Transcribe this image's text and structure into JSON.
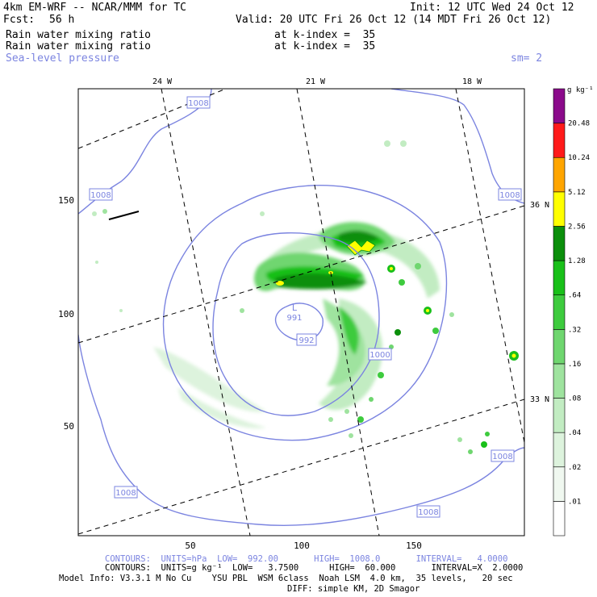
{
  "header": {
    "model": "4km EM-WRF -- NCAR/MMM for TC",
    "init": "Init: 12 UTC Wed 24 Oct 12",
    "fcst_label": "Fcst:",
    "fcst_value": "56 h",
    "valid": "Valid: 20 UTC Fri 26 Oct 12 (14 MDT Fri 26 Oct 12)",
    "fields": [
      {
        "name": "Rain water mixing ratio",
        "level": "at k-index =  35"
      },
      {
        "name": "Rain water mixing ratio",
        "level": "at k-index =  35"
      }
    ],
    "slp_label": "Sea-level pressure",
    "smooth": "sm= 2"
  },
  "axes": {
    "x_ticks": [
      "50",
      "100",
      "150"
    ],
    "y_ticks": [
      "50",
      "100",
      "150"
    ],
    "lon_labels": [
      "24 W",
      "21 W",
      "18 W"
    ],
    "lat_labels": [
      "36 N",
      "33 N"
    ]
  },
  "colorbar": {
    "units": "g kg⁻¹",
    "levels": [
      "20.48",
      "10.24",
      "5.12",
      "2.56",
      "1.28",
      ".64",
      ".32",
      ".16",
      ".08",
      ".04",
      ".02",
      ".01"
    ],
    "colors": [
      "#ffffff",
      "#f0f8f0",
      "#ddf3dd",
      "#c2ecc2",
      "#9fe39f",
      "#6fd66f",
      "#3ecb3e",
      "#19c019",
      "#0b8f0b",
      "#ffff00",
      "#ffa500",
      "#ff1a1a",
      "#8b0a8b"
    ]
  },
  "isobars": {
    "labels": [
      "1008",
      "1008",
      "1008",
      "1008",
      "1008",
      "1000",
      "992"
    ],
    "low_symbol": "L",
    "low_value": "991"
  },
  "footer": {
    "contours1": "CONTOURS:  UNITS=hPa  LOW=  992.00       HIGH=  1008.0       INTERVAL=   4.0000",
    "contours2": "CONTOURS:  UNITS=g kg⁻¹  LOW=   3.7500      HIGH=  60.000       INTERVAL=X  2.0000",
    "model_info": "Model Info: V3.3.1 M No Cu    YSU PBL  WSM 6class  Noah LSM  4.0 km,  35 levels,   20 sec",
    "diff": "DIFF: simple KM, 2D Smagor"
  }
}
